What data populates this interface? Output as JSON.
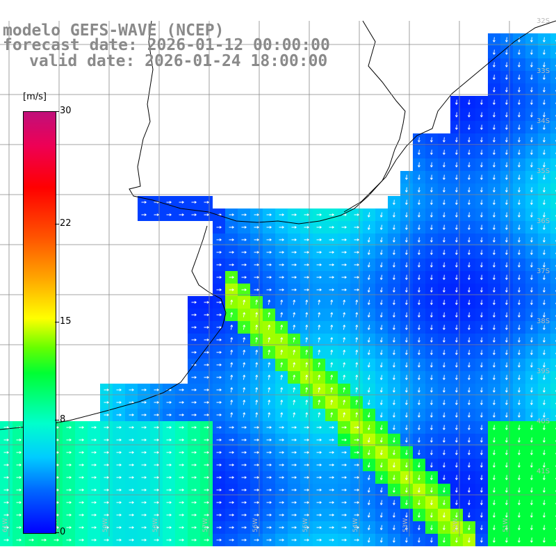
{
  "header": {
    "line1": "modelo GEFS-WAVE (NCEP)",
    "line2": "forecast date: 2026-01-12 00:00:00",
    "line3": "valid date: 2026-01-24 18:00:00"
  },
  "colorbar": {
    "unit": "[m/s]",
    "ticks": [
      "30",
      "22",
      "15",
      "8",
      "0"
    ],
    "tick_values": [
      30,
      22,
      15,
      8,
      0
    ],
    "range": [
      0,
      30
    ]
  },
  "map": {
    "lat_labels": [
      "32S",
      "33S",
      "34S",
      "35S",
      "36S",
      "37S",
      "38S",
      "39S",
      "40S",
      "41S"
    ],
    "lon_labels": [
      "61W",
      "60W",
      "59W",
      "58W",
      "57W",
      "56W",
      "55W",
      "54W",
      "53W",
      "52W",
      "51W"
    ],
    "field": "wind speed",
    "land_color": "#ffffff",
    "grid_color": "#888888",
    "arrow_color": "#ffffff"
  }
}
